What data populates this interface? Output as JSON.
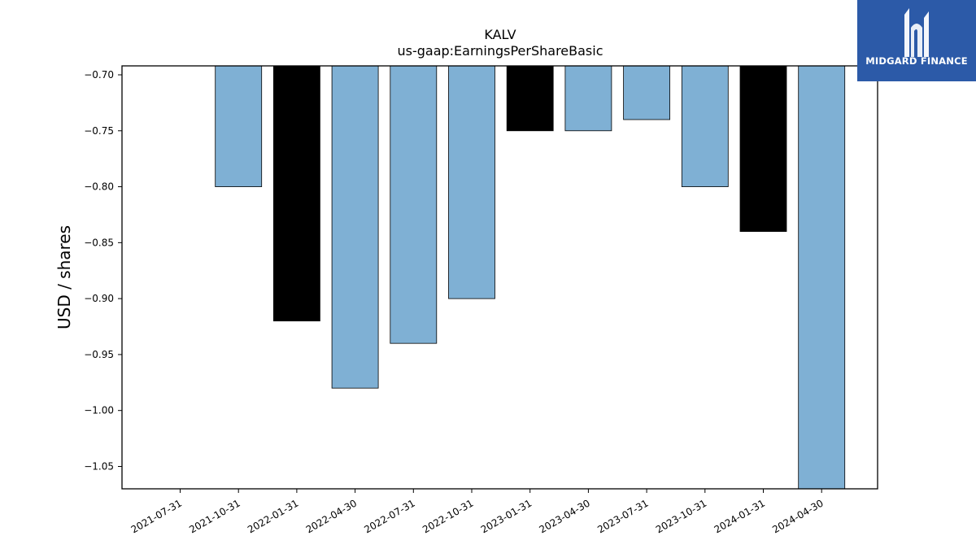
{
  "chart_data": {
    "type": "bar",
    "title": "KALV",
    "subtitle": "us-gaap:EarningsPerShareBasic",
    "xlabel": "",
    "ylabel": "USD / shares",
    "ylim": [
      -1.07,
      -0.692
    ],
    "yticks": [
      -0.7,
      -0.75,
      -0.8,
      -0.85,
      -0.9,
      -0.95,
      -1.0,
      -1.05
    ],
    "grid": false,
    "categories": [
      "2021-07-31",
      "2021-10-31",
      "2022-01-31",
      "2022-04-30",
      "2022-07-31",
      "2022-10-31",
      "2023-01-31",
      "2023-04-30",
      "2023-07-31",
      "2023-10-31",
      "2024-01-31",
      "2024-04-30"
    ],
    "values": [
      null,
      -0.8,
      -0.92,
      -0.98,
      -0.94,
      -0.9,
      -0.75,
      -0.75,
      -0.74,
      -0.8,
      -0.84,
      -1.07
    ],
    "bar_colors": [
      null,
      "#7fb0d4",
      "#000000",
      "#7fb0d4",
      "#7fb0d4",
      "#7fb0d4",
      "#000000",
      "#7fb0d4",
      "#7fb0d4",
      "#7fb0d4",
      "#000000",
      "#7fb0d4"
    ]
  },
  "logo": {
    "text": "MIDGARD FINANCE",
    "background": "#2c5aa8"
  }
}
